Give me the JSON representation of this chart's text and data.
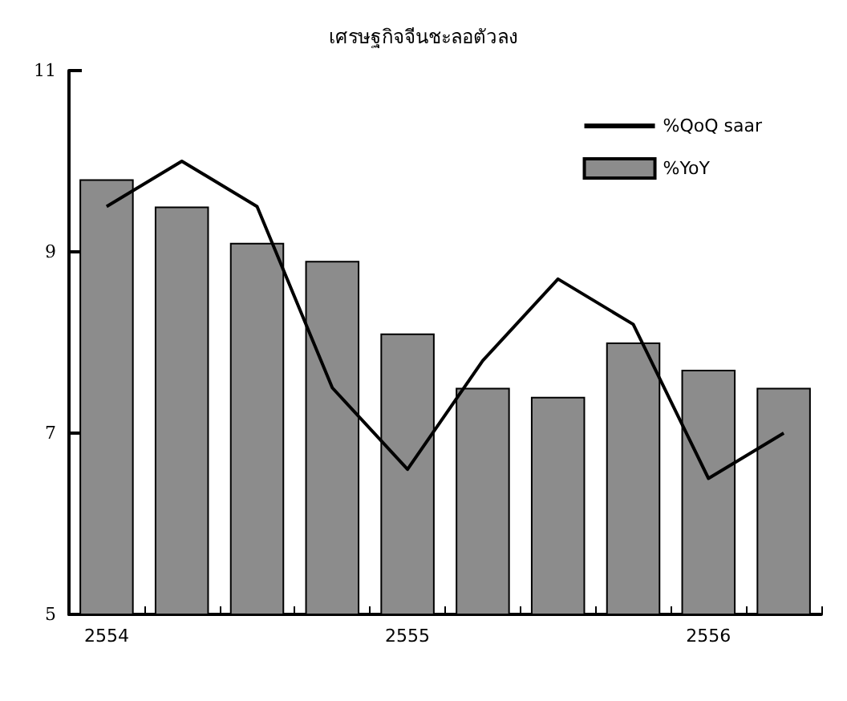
{
  "chart_data": {
    "type": "bar",
    "title": "เศรษฐกิจจีนชะลอตัวลง",
    "categories": [
      "2554",
      null,
      null,
      null,
      "2555",
      null,
      null,
      null,
      "2556",
      null
    ],
    "series": [
      {
        "name": "%QoQ saar",
        "type": "line",
        "color": "#000000",
        "values": [
          9.5,
          10.0,
          9.5,
          7.5,
          6.6,
          7.8,
          8.7,
          8.2,
          6.5,
          7.0
        ]
      },
      {
        "name": "%YoY",
        "color": "#8c8c8c",
        "values": [
          9.8,
          9.5,
          9.1,
          8.9,
          8.1,
          7.5,
          7.4,
          8.0,
          7.7,
          7.5
        ]
      }
    ],
    "ylim": [
      5,
      11
    ],
    "yticks": [
      5,
      7,
      9,
      11
    ],
    "grid": false,
    "legend": "top right",
    "marker": "none"
  }
}
